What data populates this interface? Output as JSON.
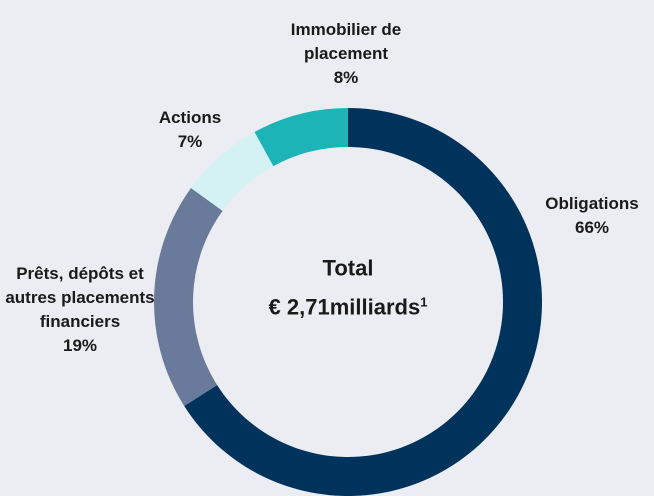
{
  "chart_data": {
    "type": "donut",
    "categories": [
      "Obligations",
      "Prêts, dépôts et autres placements financiers",
      "Actions",
      "Immobilier de placement"
    ],
    "values": [
      66,
      19,
      7,
      8
    ],
    "value_labels": [
      "66%",
      "19%",
      "7%",
      "8%"
    ],
    "colors": [
      "#00335c",
      "#6a7a9b",
      "#d4f1f4",
      "#1cb4b7"
    ],
    "center_text": {
      "label": "Total",
      "amount": "€ 2,71milliards",
      "footnote": "1"
    }
  }
}
